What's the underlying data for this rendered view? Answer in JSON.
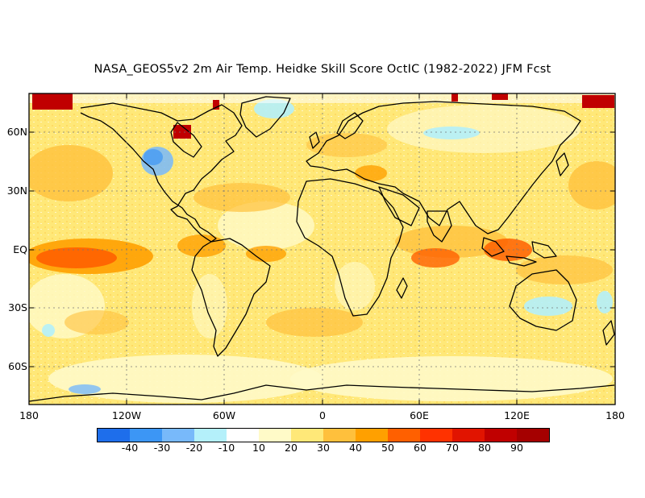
{
  "title": "NASA_GEOS5v2 2m Air Temp. Heidke Skill Score OctIC (1982-2022) JFM Fcst",
  "map": {
    "lat_labels": [
      "60N",
      "30N",
      "EQ",
      "30S",
      "60S"
    ],
    "lon_labels": [
      "180",
      "120W",
      "60W",
      "0",
      "60E",
      "120E",
      "180"
    ]
  },
  "colorbar": {
    "colors": [
      "#1e6eeb",
      "#3c96f5",
      "#78b9fa",
      "#b4f0fa",
      "#ffffff",
      "#fffac8",
      "#ffe878",
      "#ffc03c",
      "#ffa000",
      "#ff6000",
      "#ff3200",
      "#e11400",
      "#c00000",
      "#a50000"
    ],
    "labels": [
      "-40",
      "-30",
      "-20",
      "-10",
      "10",
      "20",
      "30",
      "40",
      "50",
      "60",
      "70",
      "80",
      "90"
    ]
  }
}
